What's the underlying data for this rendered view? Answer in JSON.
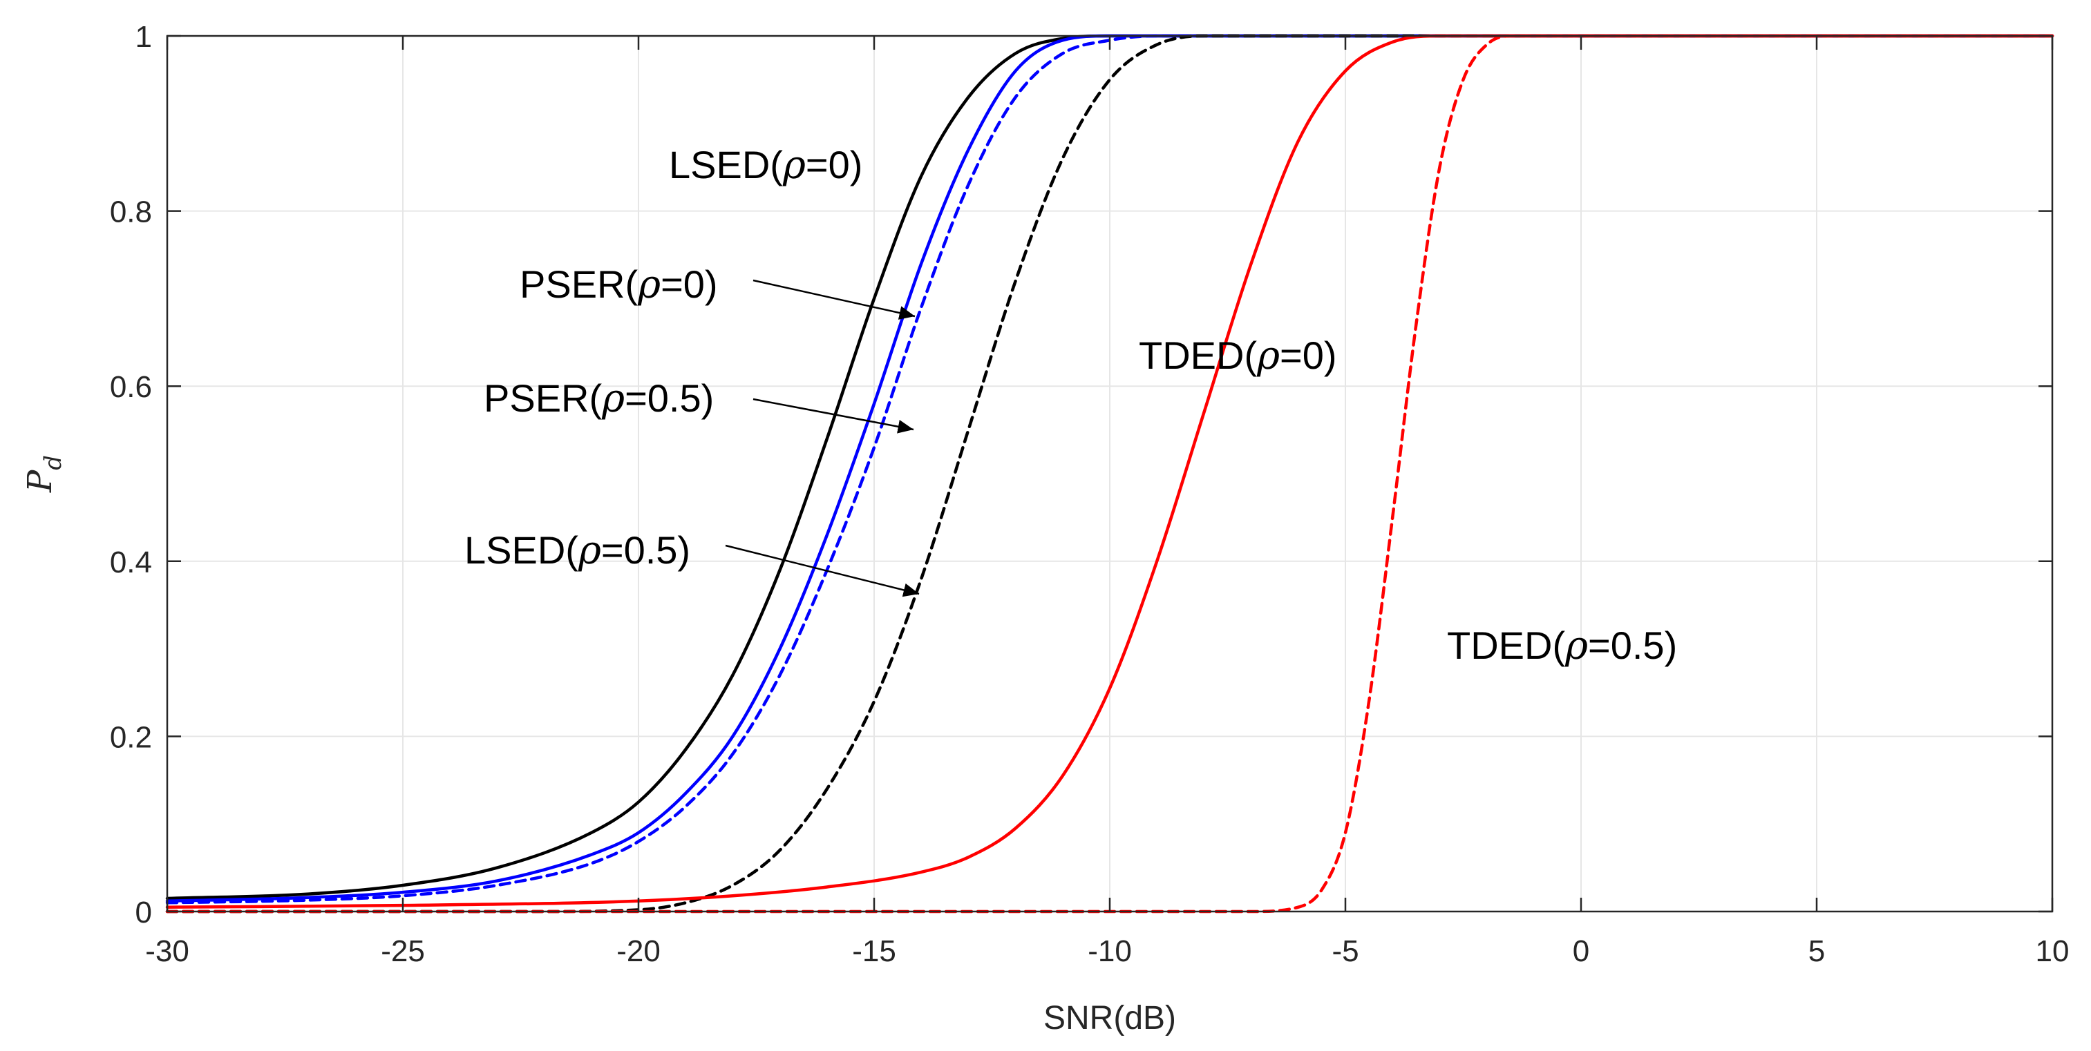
{
  "chart_data": {
    "type": "line",
    "title": "",
    "xlabel": "SNR(dB)",
    "ylabel": "P_d",
    "ylabel_main": "P",
    "ylabel_sub": "d",
    "xlim": [
      -30,
      10
    ],
    "ylim": [
      0,
      1
    ],
    "grid": true,
    "xticks": [
      -30,
      -25,
      -20,
      -15,
      -10,
      -5,
      0,
      5,
      10
    ],
    "xtick_labels": [
      "-30",
      "-25",
      "-20",
      "-15",
      "-10",
      "-5",
      "0",
      "5",
      "10"
    ],
    "yticks": [
      0,
      0.2,
      0.4,
      0.6,
      0.8,
      1
    ],
    "ytick_labels": [
      "0",
      "0.2",
      "0.4",
      "0.6",
      "0.8",
      "1"
    ],
    "series": [
      {
        "name": "LSED(ρ=0)",
        "color": "#000000",
        "dash": "solid",
        "x": [
          -30,
          -27,
          -25,
          -23,
          -21,
          -20,
          -19,
          -18,
          -17,
          -16,
          -15,
          -14,
          -13,
          -12,
          -11,
          -10,
          -8,
          10
        ],
        "y": [
          0.015,
          0.02,
          0.03,
          0.05,
          0.09,
          0.125,
          0.185,
          0.27,
          0.39,
          0.54,
          0.7,
          0.84,
          0.93,
          0.98,
          0.997,
          1,
          1,
          1
        ]
      },
      {
        "name": "PSER(ρ=0)",
        "color": "#0000ff",
        "dash": "solid",
        "x": [
          -30,
          -27,
          -25,
          -23,
          -21,
          -20,
          -19,
          -18,
          -17,
          -16,
          -15,
          -14,
          -13,
          -12,
          -11,
          -10,
          -8,
          10
        ],
        "y": [
          0.012,
          0.016,
          0.022,
          0.035,
          0.065,
          0.09,
          0.135,
          0.2,
          0.3,
          0.43,
          0.58,
          0.74,
          0.87,
          0.96,
          0.995,
          1,
          1,
          1
        ]
      },
      {
        "name": "PSER(ρ=0.5)",
        "color": "#0000ff",
        "dash": "dashed",
        "x": [
          -30,
          -27,
          -25,
          -23,
          -21,
          -20,
          -19,
          -18,
          -17,
          -16,
          -15,
          -14,
          -13,
          -12,
          -11,
          -10,
          -9,
          -8,
          10
        ],
        "y": [
          0.01,
          0.013,
          0.018,
          0.03,
          0.055,
          0.08,
          0.12,
          0.18,
          0.27,
          0.39,
          0.53,
          0.69,
          0.83,
          0.93,
          0.98,
          0.995,
          1,
          1,
          1
        ]
      },
      {
        "name": "LSED(ρ=0.5)",
        "color": "#000000",
        "dash": "dashed",
        "x": [
          -30,
          -22,
          -20,
          -19,
          -18,
          -17,
          -16,
          -15,
          -14,
          -13,
          -12,
          -11,
          -10,
          -9,
          -8,
          10
        ],
        "y": [
          0,
          0,
          0.002,
          0.01,
          0.03,
          0.07,
          0.14,
          0.24,
          0.38,
          0.55,
          0.72,
          0.86,
          0.95,
          0.99,
          1,
          1
        ]
      },
      {
        "name": "TDED(ρ=0)",
        "color": "#ff0000",
        "dash": "solid",
        "x": [
          -30,
          -25,
          -20,
          -18,
          -16,
          -14,
          -13,
          -12,
          -11,
          -10,
          -9,
          -8,
          -7,
          -6,
          -5,
          -4,
          -3,
          -2,
          10
        ],
        "y": [
          0.005,
          0.007,
          0.012,
          0.018,
          0.028,
          0.045,
          0.062,
          0.095,
          0.155,
          0.255,
          0.4,
          0.57,
          0.74,
          0.88,
          0.96,
          0.993,
          1,
          1,
          1
        ]
      },
      {
        "name": "TDED(ρ=0.5)",
        "color": "#ff0000",
        "dash": "dashed",
        "x": [
          -30,
          -7,
          -6,
          -5.5,
          -5,
          -4.5,
          -4,
          -3.5,
          -3,
          -2.5,
          -2,
          -1.5,
          -1,
          10
        ],
        "y": [
          0,
          0,
          0.005,
          0.025,
          0.09,
          0.24,
          0.45,
          0.67,
          0.85,
          0.95,
          0.99,
          1,
          1,
          1
        ]
      }
    ],
    "annotations": [
      {
        "id": "lsed0",
        "name_prefix": "LSED(",
        "rho_symbol": "ρ",
        "value_suffix": "=0)"
      },
      {
        "id": "pser0",
        "name_prefix": "PSER(",
        "rho_symbol": "ρ",
        "value_suffix": "=0)"
      },
      {
        "id": "pser05",
        "name_prefix": "PSER(",
        "rho_symbol": "ρ",
        "value_suffix": "=0.5)"
      },
      {
        "id": "lsed05",
        "name_prefix": "LSED(",
        "rho_symbol": "ρ",
        "value_suffix": "=0.5)"
      },
      {
        "id": "tded0",
        "name_prefix": "TDED(",
        "rho_symbol": "ρ",
        "value_suffix": "=0)"
      },
      {
        "id": "tded05",
        "name_prefix": "TDED(",
        "rho_symbol": "ρ",
        "value_suffix": "=0.5)"
      }
    ]
  }
}
